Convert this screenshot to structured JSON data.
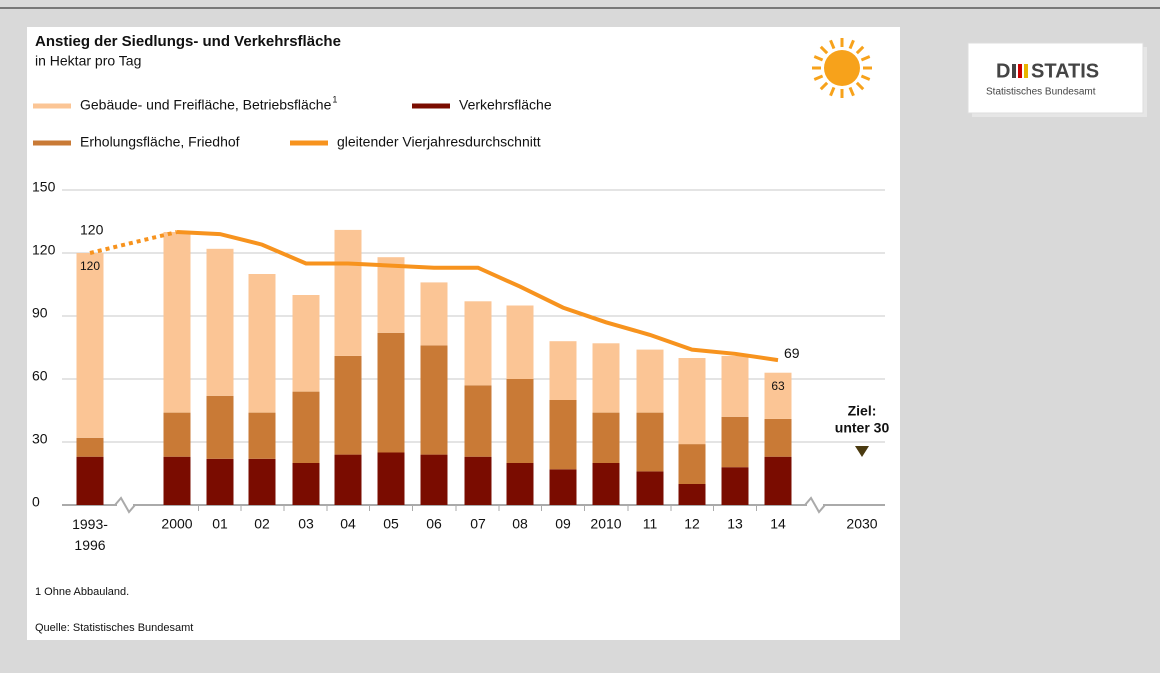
{
  "chart_data": {
    "type": "stacked-bar-line",
    "title": "Anstieg der Siedlungs- und Verkehrsfläche",
    "subtitle": "in Hektar pro Tag",
    "categories": [
      "1993- 1996",
      "2000",
      "01",
      "02",
      "03",
      "04",
      "05",
      "06",
      "07",
      "08",
      "09",
      "2010",
      "11",
      "12",
      "13",
      "14",
      "2030"
    ],
    "series": [
      {
        "name": "Verkehrsfläche",
        "color": "#7a0c00",
        "values": [
          23,
          23,
          22,
          22,
          20,
          24,
          25,
          24,
          23,
          20,
          17,
          20,
          16,
          10,
          18,
          23,
          null
        ]
      },
      {
        "name": "Erholungsfläche, Friedhof",
        "color": "#c97a36",
        "values": [
          9,
          21,
          30,
          22,
          34,
          47,
          57,
          52,
          34,
          40,
          33,
          24,
          28,
          19,
          24,
          18,
          null
        ]
      },
      {
        "name": "Gebäude- und Freifläche, Betriebsfläche",
        "footnote_mark": "1",
        "color": "#fbc595",
        "values": [
          88,
          86,
          70,
          66,
          46,
          60,
          36,
          30,
          40,
          35,
          28,
          33,
          30,
          41,
          29,
          22,
          null
        ]
      },
      {
        "name": "gleitender Vierjahresdurchschnitt",
        "color": "#f7931e",
        "kind": "line",
        "values": [
          120,
          130,
          129,
          124,
          115,
          115,
          114,
          113,
          113,
          104,
          94,
          87,
          81,
          74,
          72,
          69,
          null
        ]
      }
    ],
    "bar_labels": [
      {
        "index": 0,
        "value": 120
      },
      {
        "index": 15,
        "value": 63
      }
    ],
    "line_labels": [
      {
        "index": 0,
        "value": 120
      },
      {
        "index": 15,
        "value": 69
      }
    ],
    "target": {
      "lines": [
        "Ziel:",
        "unter 30"
      ],
      "value": 30
    },
    "ylim": [
      0,
      150
    ],
    "yticks": [
      0,
      30,
      60,
      90,
      120,
      150
    ],
    "grid": true,
    "footnote": "1 Ohne Abbauland.",
    "source": "Quelle: Statistisches Bundesamt"
  },
  "logo": {
    "left": "D",
    "right": "STATIS",
    "subtitle": "Statistisches Bundesamt"
  }
}
